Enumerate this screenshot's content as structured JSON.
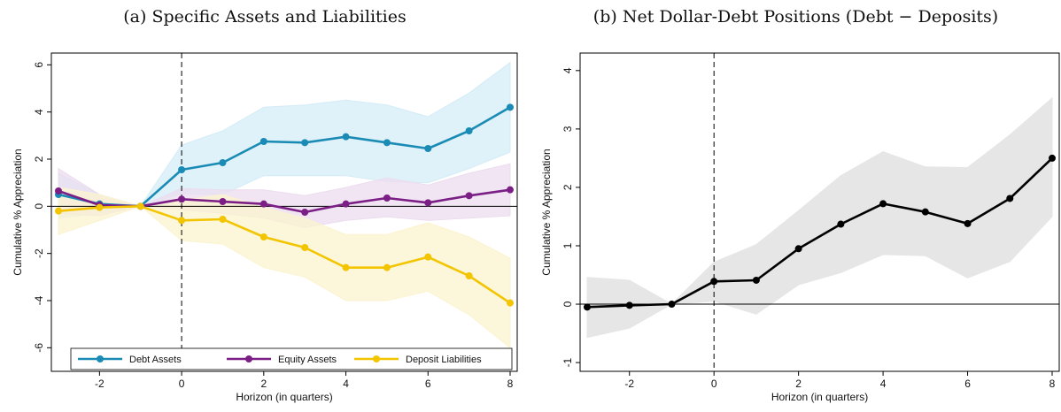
{
  "panels": {
    "a": {
      "title": "(a)  Specific Assets and Liabilities"
    },
    "b": {
      "title": "(b)  Net Dollar-Debt Positions (Debt − Deposits)"
    }
  },
  "chart_data": [
    {
      "type": "line",
      "title": "(a)  Specific Assets and Liabilities",
      "xlabel": "Horizon (in quarters)",
      "ylabel": "Cumulative % Appreciation",
      "xlim": [
        -3,
        8
      ],
      "ylim": [
        -7,
        6.5
      ],
      "xticks": [
        -2,
        0,
        2,
        4,
        6,
        8
      ],
      "yticks": [
        -6,
        -4,
        -2,
        0,
        2,
        4,
        6
      ],
      "vline": 0,
      "hline": 0,
      "grid": false,
      "legend_position": "bottom",
      "x": [
        -3,
        -2,
        -1,
        0,
        1,
        2,
        3,
        4,
        5,
        6,
        7,
        8
      ],
      "series": [
        {
          "name": "Debt Assets",
          "color": "#1a8bb5",
          "band_color": "#d4ecf7",
          "values": [
            0.5,
            0.1,
            0.0,
            1.55,
            1.85,
            2.75,
            2.7,
            2.95,
            2.7,
            2.45,
            3.2,
            4.2
          ],
          "lower": [
            -0.5,
            -0.3,
            0.0,
            0.55,
            0.5,
            1.3,
            1.3,
            1.3,
            1.05,
            1.0,
            1.6,
            2.3
          ],
          "upper": [
            1.4,
            0.5,
            0.0,
            2.6,
            3.2,
            4.2,
            4.3,
            4.5,
            4.3,
            3.8,
            4.8,
            6.1
          ]
        },
        {
          "name": "Equity Assets",
          "color": "#7b1f86",
          "band_color": "#ecdcef",
          "values": [
            0.65,
            0.05,
            0.0,
            0.3,
            0.2,
            0.1,
            -0.25,
            0.1,
            0.35,
            0.15,
            0.45,
            0.7
          ],
          "lower": [
            -0.3,
            -0.4,
            0.0,
            -0.15,
            -0.3,
            -0.5,
            -0.9,
            -0.6,
            -0.45,
            -0.6,
            -0.5,
            -0.4
          ],
          "upper": [
            1.6,
            0.5,
            0.0,
            0.75,
            0.7,
            0.7,
            0.45,
            0.8,
            1.2,
            0.9,
            1.4,
            1.8
          ]
        },
        {
          "name": "Deposit Liabilities",
          "color": "#f2c500",
          "band_color": "#fbf3cf",
          "values": [
            -0.2,
            -0.05,
            0.0,
            -0.6,
            -0.55,
            -1.3,
            -1.75,
            -2.6,
            -2.6,
            -2.15,
            -2.95,
            -4.1
          ],
          "lower": [
            -1.2,
            -0.6,
            0.0,
            -1.45,
            -1.6,
            -2.6,
            -3.0,
            -4.0,
            -4.0,
            -3.6,
            -4.6,
            -6.0
          ],
          "upper": [
            0.8,
            0.5,
            0.0,
            0.25,
            0.5,
            -0.05,
            -0.5,
            -1.2,
            -1.2,
            -0.7,
            -1.3,
            -2.2
          ]
        }
      ]
    },
    {
      "type": "line",
      "title": "(b)  Net Dollar-Debt Positions (Debt − Deposits)",
      "xlabel": "Horizon (in quarters)",
      "ylabel": "Cumulative % Appreciation",
      "xlim": [
        -3,
        8
      ],
      "ylim": [
        -1.15,
        4.3
      ],
      "xticks": [
        -2,
        0,
        2,
        4,
        6,
        8
      ],
      "yticks": [
        -1,
        0,
        1,
        2,
        3,
        4
      ],
      "vline": 0,
      "hline": 0,
      "grid": false,
      "legend_position": "none",
      "x": [
        -3,
        -2,
        -1,
        0,
        1,
        2,
        3,
        4,
        5,
        6,
        7,
        8
      ],
      "series": [
        {
          "name": "",
          "color": "#000000",
          "band_color": "#e6e6e6",
          "values": [
            -0.05,
            -0.02,
            0.0,
            0.39,
            0.41,
            0.95,
            1.37,
            1.72,
            1.58,
            1.38,
            1.81,
            2.5
          ],
          "lower": [
            -0.57,
            -0.41,
            0.0,
            0.05,
            -0.17,
            0.33,
            0.54,
            0.85,
            0.83,
            0.45,
            0.73,
            1.5
          ],
          "upper": [
            0.46,
            0.41,
            0.0,
            0.72,
            1.02,
            1.6,
            2.2,
            2.61,
            2.35,
            2.34,
            2.9,
            3.53
          ]
        }
      ]
    }
  ]
}
